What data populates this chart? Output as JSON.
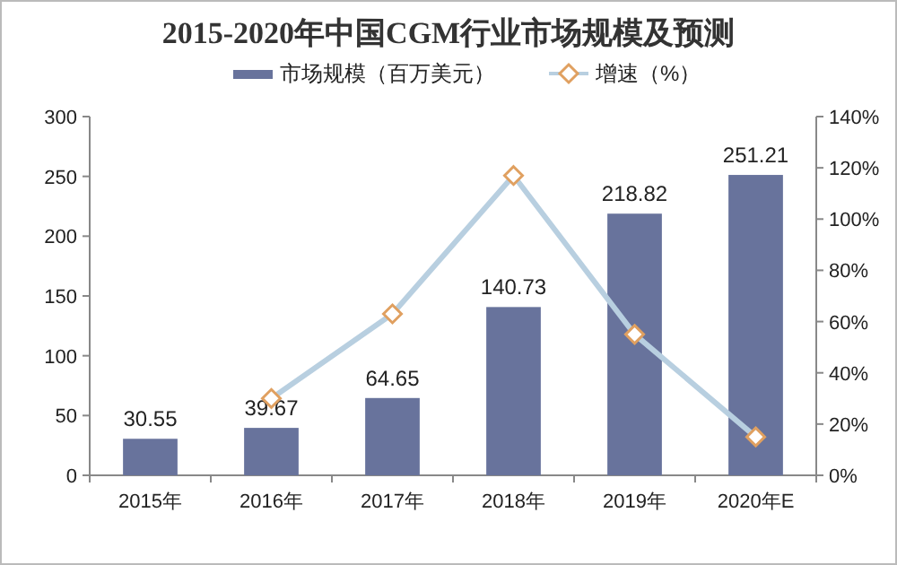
{
  "chart_data": {
    "type": "bar",
    "title": "2015-2020年中国CGM行业市场规模及预测",
    "categories": [
      "2015年",
      "2016年",
      "2017年",
      "2018年",
      "2019年",
      "2020年E"
    ],
    "series": [
      {
        "name": "市场规模（百万美元）",
        "color": "#68739c",
        "values": [
          30.55,
          39.67,
          64.65,
          140.73,
          218.82,
          251.21
        ],
        "value_labels": [
          "30.55",
          "39.67",
          "64.65",
          "140.73",
          "218.82",
          "251.21"
        ]
      },
      {
        "name": "增速（%）",
        "type": "line",
        "axis": "y2",
        "color": "#b8cfe0",
        "marker": "diamond",
        "values": [
          null,
          30,
          63,
          117,
          55,
          15
        ]
      }
    ],
    "ylim": [
      0,
      300
    ],
    "yticks": [
      0,
      50,
      100,
      150,
      200,
      250,
      300
    ],
    "y2lim": [
      0,
      140
    ],
    "y2ticks": [
      {
        "value": 0,
        "label": "0%"
      },
      {
        "value": 20,
        "label": "20%"
      },
      {
        "value": 40,
        "label": "40%"
      },
      {
        "value": 60,
        "label": "60%"
      },
      {
        "value": 80,
        "label": "80%"
      },
      {
        "value": 100,
        "label": "100%"
      },
      {
        "value": 120,
        "label": "120%"
      },
      {
        "value": 140,
        "label": "140%"
      }
    ],
    "legend": "top",
    "grid": false
  }
}
